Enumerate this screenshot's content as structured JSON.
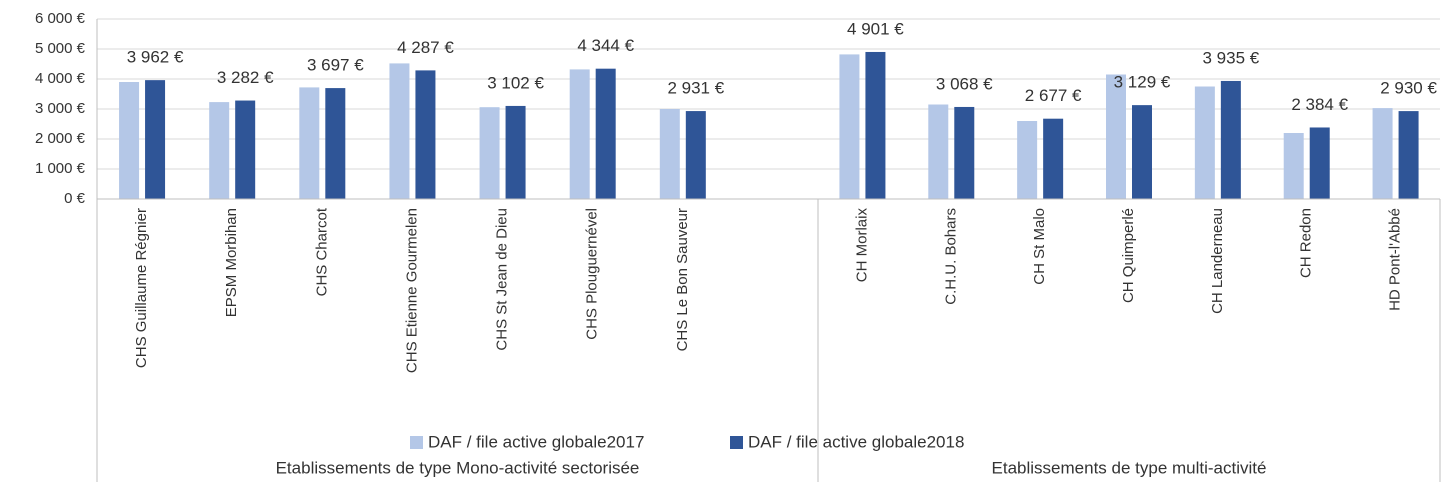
{
  "chart_data": {
    "type": "bar",
    "categories": [
      "CHS Guillaume Régnier",
      "EPSM Morbihan",
      "CHS Charcot",
      "CHS Etienne Gourmelen",
      "CHS St Jean de Dieu",
      "CHS Plouguernével",
      "CHS Le Bon Sauveur",
      null,
      "CH Morlaix",
      "C.H.U. Bohars",
      "CH St Malo",
      "CH Quimperlé",
      "CH Landerneau",
      "CH Redon",
      "HD Pont-l'Abbé"
    ],
    "groups": [
      "Etablissements de type Mono-activité sectorisée",
      "Etablissements de type multi-activité"
    ],
    "series": [
      {
        "name": "DAF / file active globale2017",
        "color": "#b4c7e7",
        "values": [
          3900,
          3230,
          3720,
          4520,
          3060,
          4320,
          3000,
          null,
          4820,
          3150,
          2600,
          4150,
          3750,
          2200,
          3030
        ]
      },
      {
        "name": "DAF / file active globale2018",
        "color": "#2f5597",
        "values": [
          3962,
          3282,
          3697,
          4287,
          3102,
          4344,
          2931,
          null,
          4901,
          3068,
          2677,
          3129,
          3935,
          2384,
          2930
        ],
        "value_labels": [
          "3 962 €",
          "3 282 €",
          "3 697 €",
          "4 287 €",
          "3 102 €",
          "4 344 €",
          "2 931 €",
          null,
          "4 901 €",
          "3 068 €",
          "2 677 €",
          "3 129 €",
          "3 935 €",
          "2 384 €",
          "2 930 €"
        ]
      }
    ],
    "ylim": [
      0,
      6000
    ],
    "yticks": [
      {
        "value": 0,
        "label": "0 €"
      },
      {
        "value": 1000,
        "label": "1 000 €"
      },
      {
        "value": 2000,
        "label": "2 000 €"
      },
      {
        "value": 3000,
        "label": "3 000 €"
      },
      {
        "value": 4000,
        "label": "4 000 €"
      },
      {
        "value": 5000,
        "label": "5 000 €"
      },
      {
        "value": 6000,
        "label": "6 000 €"
      }
    ],
    "grid": true,
    "legend": "bottom"
  }
}
